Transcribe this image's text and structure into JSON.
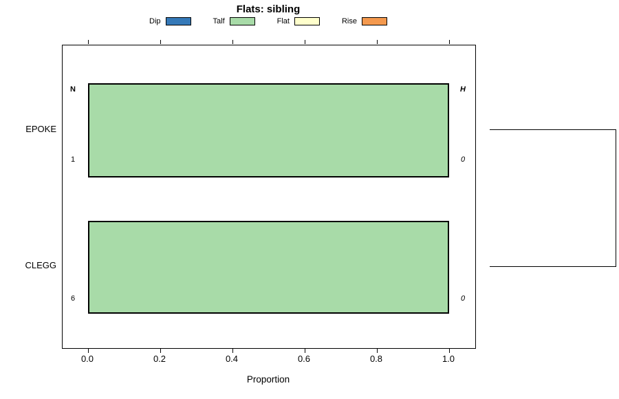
{
  "title": "Flats: sibling",
  "legend": {
    "items": [
      {
        "label": "Dip",
        "color": "#3579B8"
      },
      {
        "label": "Talf",
        "color": "#A8DBA8"
      },
      {
        "label": "Flat",
        "color": "#FFFFCC"
      },
      {
        "label": "Rise",
        "color": "#F4994E"
      }
    ]
  },
  "chart_data": {
    "type": "bar",
    "subtype": "horizontal-stacked-proportion",
    "title": "Flats: sibling",
    "xlabel": "Proportion",
    "xlim": [
      0,
      1
    ],
    "x_ticks": [
      "0.0",
      "0.2",
      "0.4",
      "0.6",
      "0.8",
      "1.0"
    ],
    "categories": [
      "EPOKE",
      "CLEGG"
    ],
    "series": [
      {
        "name": "Dip",
        "values": [
          0,
          0
        ]
      },
      {
        "name": "Talf",
        "values": [
          1.0,
          1.0
        ]
      },
      {
        "name": "Flat",
        "values": [
          0,
          0
        ]
      },
      {
        "name": "Rise",
        "values": [
          0,
          0
        ]
      }
    ],
    "annotations": {
      "left_header": "N",
      "right_header": "H",
      "rows": [
        {
          "category": "EPOKE",
          "left": "1",
          "right": "0"
        },
        {
          "category": "CLEGG",
          "left": "6",
          "right": "0"
        }
      ]
    },
    "legend_position": "top",
    "grid": false,
    "dendrogram": {
      "side": "right",
      "joins": [
        [
          "EPOKE",
          "CLEGG"
        ]
      ]
    }
  }
}
